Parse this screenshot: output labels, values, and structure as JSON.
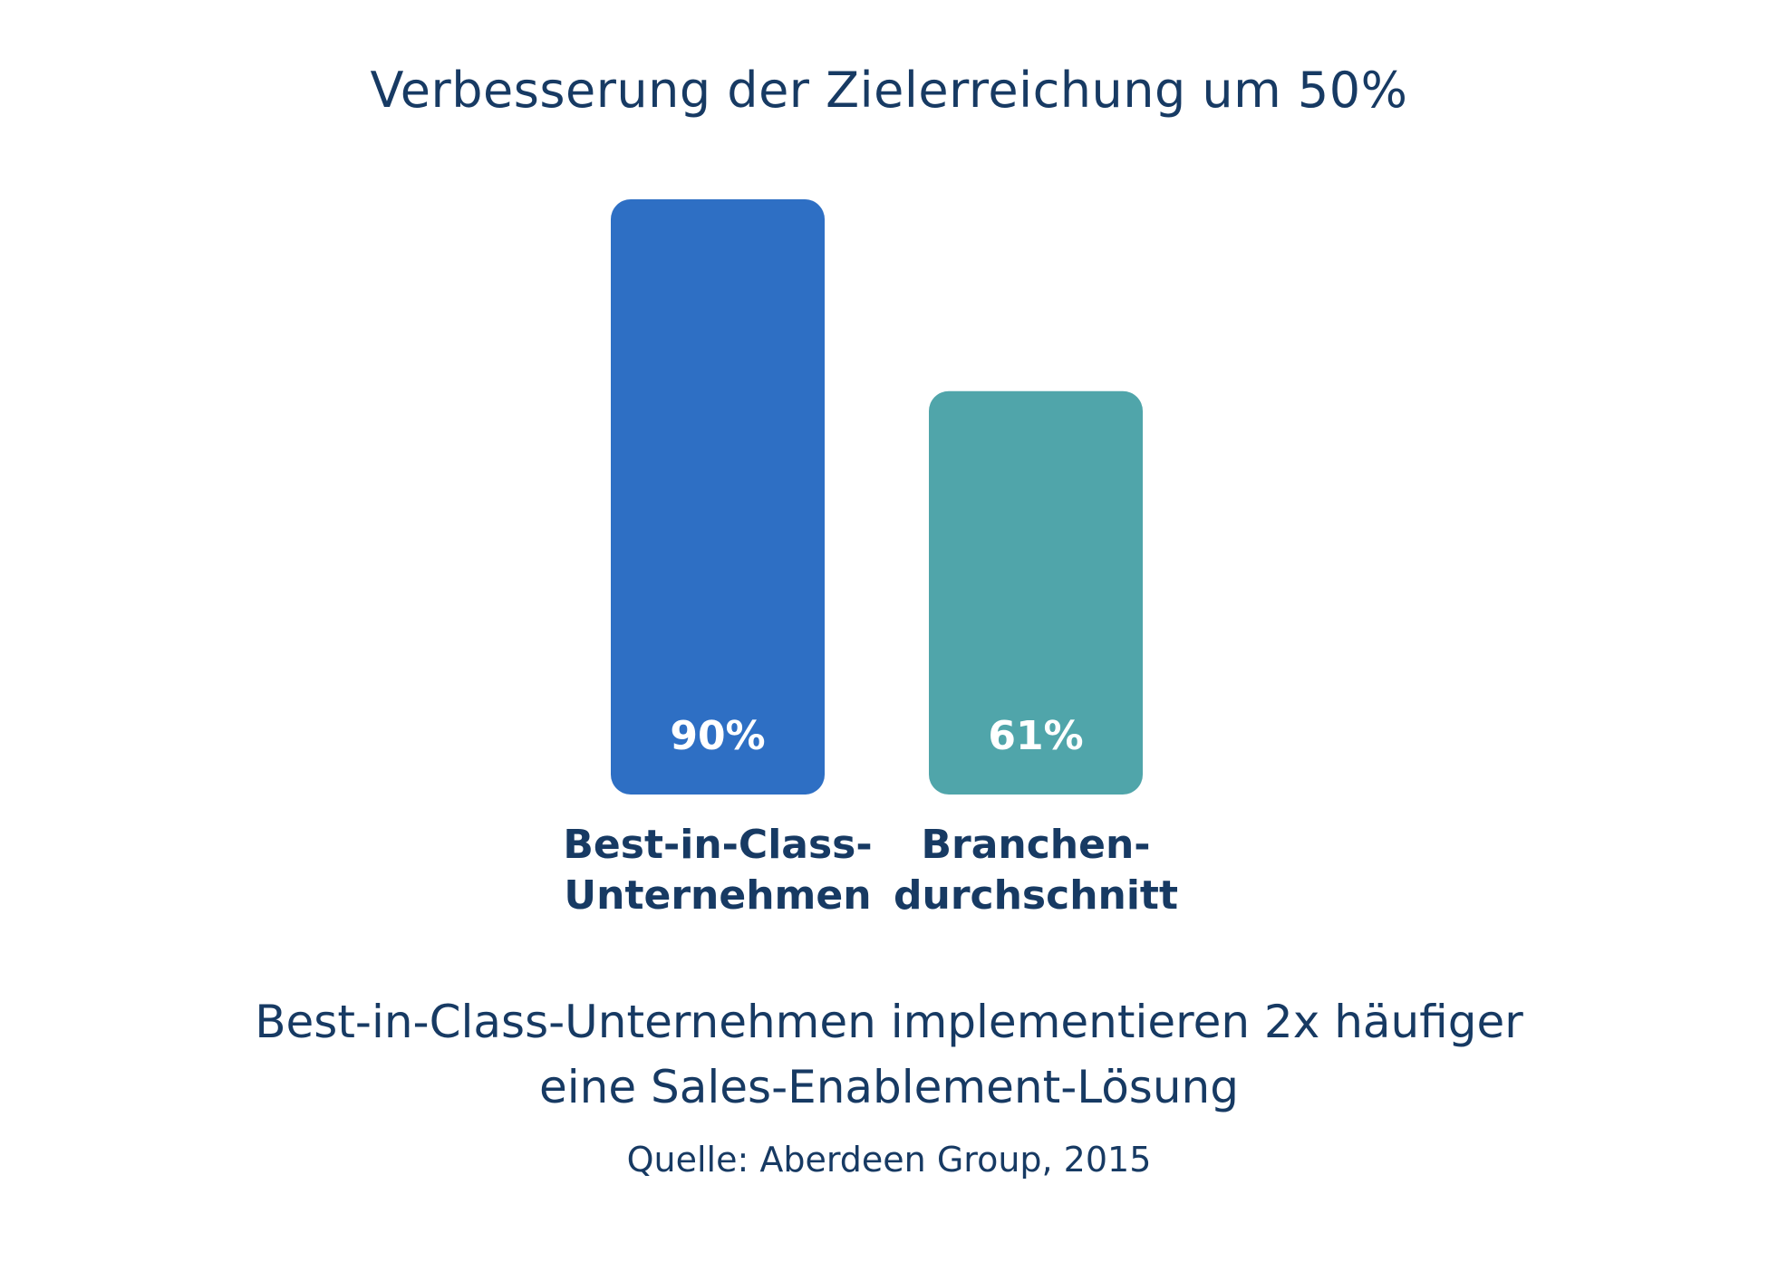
{
  "header": {
    "title": "Verbesserung der Zielerreichung um 50%"
  },
  "chart_data": {
    "type": "bar",
    "categories": [
      [
        "Best-in-Class-",
        "Unternehmen"
      ],
      [
        "Branchen-",
        "durchschnitt"
      ]
    ],
    "values": [
      90,
      61
    ],
    "value_labels": [
      "90%",
      "61%"
    ],
    "colors": [
      "#2e6fc4",
      "#50a5aa"
    ],
    "ylim": [
      0,
      100
    ],
    "grid": false,
    "legend": "none"
  },
  "footer": {
    "subtitle_line1": "Best-in-Class-Unternehmen implementieren 2x häufiger",
    "subtitle_line2": "eine Sales-Enablement-Lösung",
    "source": "Quelle: Aberdeen Group, 2015"
  }
}
